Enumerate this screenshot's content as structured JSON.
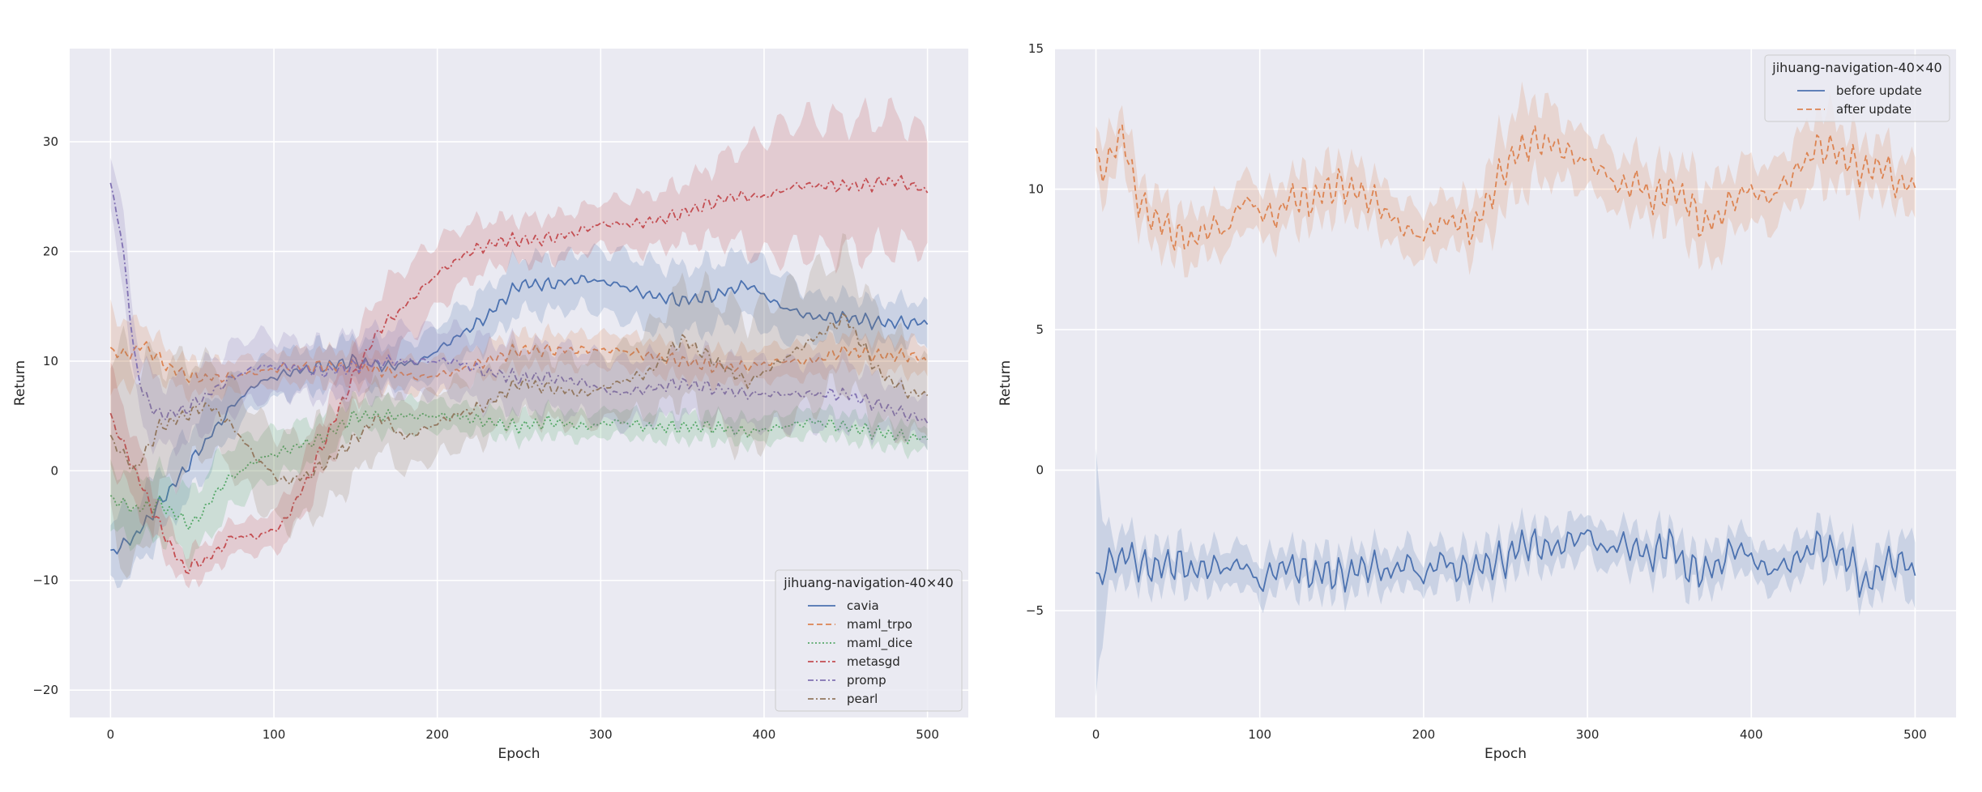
{
  "chart_data": [
    {
      "type": "line",
      "xlabel": "Epoch",
      "ylabel": "Return",
      "xlim": [
        -25,
        525
      ],
      "ylim": [
        -22.5,
        38.5
      ],
      "xticks": [
        0,
        100,
        200,
        300,
        400,
        500
      ],
      "yticks": [
        -20,
        -10,
        0,
        10,
        20,
        30
      ],
      "grid": true,
      "legend": {
        "title": "jihuang-navigation-40×40",
        "placement": "lower-right"
      },
      "series": [
        {
          "name": "cavia",
          "color": "#4c72b0",
          "dash": "solid",
          "x": [
            0,
            15,
            30,
            45,
            60,
            75,
            90,
            110,
            130,
            150,
            170,
            190,
            210,
            230,
            250,
            270,
            290,
            310,
            330,
            350,
            370,
            390,
            410,
            430,
            450,
            470,
            490,
            500
          ],
          "y": [
            -7.5,
            -6,
            -3,
            0,
            3,
            6,
            8,
            9,
            9.5,
            10,
            9.5,
            10,
            12,
            14,
            17,
            17,
            17.5,
            17,
            16,
            15.5,
            16,
            17,
            15,
            14,
            14,
            13.5,
            13.5,
            13.5
          ],
          "band": [
            3,
            3,
            3,
            3,
            3,
            2.5,
            2,
            2,
            2,
            2,
            2,
            2,
            2.5,
            2.5,
            2.5,
            2.5,
            2.5,
            3,
            3,
            3,
            3,
            3,
            3,
            2,
            2,
            2,
            2,
            1.8
          ]
        },
        {
          "name": "maml_trpo",
          "color": "#dd8452",
          "dash": "dashed",
          "x": [
            0,
            10,
            20,
            35,
            50,
            70,
            90,
            110,
            130,
            150,
            170,
            190,
            210,
            230,
            250,
            270,
            290,
            310,
            330,
            350,
            370,
            390,
            410,
            430,
            450,
            470,
            490,
            500
          ],
          "y": [
            11,
            10.5,
            11.5,
            9.5,
            8.5,
            8.5,
            9,
            9.5,
            9.5,
            9.5,
            9,
            8.5,
            9,
            10,
            11,
            11,
            11,
            11,
            10.5,
            10,
            9.5,
            9.5,
            10,
            10,
            11,
            10.5,
            10.5,
            10
          ],
          "band": [
            4,
            3,
            2,
            1.5,
            1.5,
            1.5,
            1.5,
            1.5,
            1.5,
            1.5,
            1.5,
            1.5,
            1.5,
            1.5,
            1.5,
            1.5,
            1.5,
            1.5,
            1.5,
            1.5,
            1.5,
            1.5,
            1.5,
            1.5,
            1.5,
            1.5,
            1.5,
            1.5
          ]
        },
        {
          "name": "maml_dice",
          "color": "#55a868",
          "dash": "dotted",
          "x": [
            0,
            15,
            30,
            50,
            70,
            90,
            110,
            130,
            150,
            170,
            190,
            210,
            230,
            250,
            270,
            290,
            310,
            330,
            350,
            370,
            390,
            410,
            430,
            450,
            470,
            490,
            500
          ],
          "y": [
            -2.5,
            -3.5,
            -3,
            -5,
            -1,
            1,
            2,
            3,
            5,
            5,
            5,
            5,
            4.5,
            4,
            4.5,
            4,
            4.5,
            4,
            4,
            4,
            3.5,
            4,
            4.5,
            4,
            3.5,
            3,
            3
          ],
          "band": [
            3,
            3,
            3,
            3,
            3,
            2.5,
            2,
            2,
            1.5,
            1.5,
            1.5,
            1.2,
            1.2,
            1.2,
            1.2,
            1.2,
            1.2,
            1.2,
            1.2,
            1.2,
            1.2,
            1.2,
            1.2,
            1.2,
            1.2,
            1.2,
            1.2
          ]
        },
        {
          "name": "metasgd",
          "color": "#c44e52",
          "dash": "dashdot",
          "x": [
            0,
            15,
            30,
            45,
            60,
            75,
            90,
            105,
            120,
            135,
            150,
            165,
            180,
            200,
            220,
            240,
            260,
            280,
            300,
            320,
            340,
            360,
            380,
            400,
            420,
            440,
            460,
            480,
            500
          ],
          "y": [
            5,
            0,
            -5,
            -9,
            -8,
            -6,
            -6,
            -5,
            -1,
            4,
            9,
            13,
            15,
            18,
            20,
            21,
            21,
            21.5,
            22.5,
            22.5,
            23,
            24,
            25,
            25,
            26,
            26,
            26,
            26.5,
            25.5
          ],
          "band": [
            4,
            3,
            2,
            1.5,
            1.5,
            1.5,
            1.5,
            2,
            2.5,
            3,
            3,
            3.5,
            3.5,
            3,
            2.5,
            2,
            2,
            2,
            2,
            2.5,
            2.5,
            3,
            4,
            5.5,
            6,
            6,
            6,
            6,
            5
          ]
        },
        {
          "name": "promp",
          "color": "#8172b3",
          "dash": "dashdot",
          "x": [
            0,
            5,
            10,
            15,
            20,
            30,
            45,
            60,
            75,
            90,
            110,
            130,
            150,
            170,
            190,
            210,
            230,
            250,
            270,
            290,
            310,
            330,
            350,
            370,
            390,
            410,
            430,
            450,
            470,
            490,
            500
          ],
          "y": [
            26,
            23,
            17,
            10,
            7,
            5,
            5.5,
            7,
            8.5,
            9.5,
            9.5,
            9,
            9.5,
            10,
            10,
            10,
            9,
            8.5,
            8.5,
            8,
            7,
            7.5,
            8,
            7.5,
            7,
            7,
            7,
            7,
            6,
            5,
            4.5
          ],
          "band": [
            3,
            3,
            3,
            3,
            3,
            3,
            3,
            3,
            3,
            3,
            2.5,
            2.5,
            3,
            3,
            3,
            3,
            3,
            3,
            3,
            3,
            3,
            3,
            3,
            3,
            3,
            3,
            3,
            3,
            2.5,
            2,
            2
          ]
        },
        {
          "name": "pearl",
          "color": "#937860",
          "dash": "dashdot",
          "x": [
            0,
            15,
            30,
            45,
            60,
            75,
            90,
            105,
            120,
            135,
            150,
            165,
            180,
            195,
            210,
            230,
            250,
            270,
            290,
            310,
            330,
            350,
            370,
            390,
            410,
            430,
            450,
            470,
            490,
            500
          ],
          "y": [
            3,
            0,
            4,
            5,
            6,
            4,
            1,
            -1,
            -0.5,
            1,
            3,
            5,
            3,
            4,
            5,
            6,
            8,
            7.5,
            7,
            8,
            9,
            12,
            10,
            8,
            10,
            12,
            14,
            9,
            7,
            7
          ],
          "band": [
            8,
            10,
            6,
            5,
            4,
            4,
            4,
            4,
            4,
            4,
            3.5,
            3,
            3,
            3,
            3,
            3,
            3,
            3,
            3,
            3,
            4,
            5,
            6,
            6,
            6,
            6,
            6,
            5,
            4,
            3
          ]
        }
      ]
    },
    {
      "type": "line",
      "xlabel": "Epoch",
      "ylabel": "Return",
      "xlim": [
        -25,
        525
      ],
      "ylim": [
        -8.8,
        15
      ],
      "xticks": [
        0,
        100,
        200,
        300,
        400,
        500
      ],
      "yticks": [
        -5,
        0,
        5,
        10,
        15
      ],
      "grid": true,
      "legend": {
        "title": "jihuang-navigation-40×40",
        "placement": "upper-right"
      },
      "series": [
        {
          "name": "before update",
          "color": "#4c72b0",
          "dash": "solid",
          "x": [
            0,
            2,
            5,
            10,
            20,
            30,
            40,
            50,
            60,
            70,
            80,
            90,
            100,
            110,
            120,
            130,
            140,
            150,
            160,
            170,
            180,
            190,
            200,
            210,
            220,
            230,
            240,
            250,
            260,
            270,
            280,
            290,
            300,
            310,
            320,
            330,
            340,
            350,
            360,
            370,
            380,
            390,
            400,
            410,
            420,
            430,
            440,
            450,
            460,
            470,
            480,
            490,
            500
          ],
          "y": [
            -3.9,
            -3.8,
            -3.5,
            -3.2,
            -3.0,
            -3.5,
            -3.4,
            -3.3,
            -3.6,
            -3.4,
            -3.5,
            -3.3,
            -4.1,
            -3.5,
            -3.4,
            -3.7,
            -3.6,
            -3.8,
            -3.5,
            -3.4,
            -3.7,
            -3.2,
            -3.9,
            -3.1,
            -3.6,
            -3.5,
            -3.3,
            -3.2,
            -2.6,
            -2.7,
            -2.8,
            -2.5,
            -2.2,
            -2.9,
            -2.6,
            -2.8,
            -3.1,
            -2.5,
            -3.5,
            -3.6,
            -3.4,
            -2.7,
            -3.1,
            -3.6,
            -3.4,
            -3.1,
            -2.6,
            -2.9,
            -3.2,
            -4.2,
            -3.4,
            -3.2,
            -3.6
          ],
          "band": [
            4.0,
            2.5,
            1.5,
            1.0,
            0.8,
            0.7,
            0.7,
            0.7,
            0.7,
            0.7,
            0.7,
            0.7,
            0.7,
            0.7,
            0.7,
            0.7,
            0.7,
            0.7,
            0.7,
            0.7,
            0.7,
            0.7,
            0.7,
            0.7,
            0.7,
            0.7,
            0.7,
            0.7,
            0.7,
            0.7,
            0.7,
            0.7,
            0.7,
            0.7,
            0.7,
            0.7,
            0.7,
            0.7,
            0.7,
            0.7,
            0.7,
            0.7,
            0.7,
            0.7,
            0.7,
            0.7,
            0.7,
            0.7,
            0.7,
            0.7,
            0.7,
            0.7,
            1.2
          ]
        },
        {
          "name": "after update",
          "color": "#dd8452",
          "dash": "dashed",
          "x": [
            0,
            5,
            10,
            15,
            20,
            25,
            30,
            40,
            50,
            60,
            70,
            80,
            90,
            100,
            110,
            120,
            130,
            140,
            150,
            160,
            170,
            180,
            190,
            200,
            210,
            220,
            230,
            240,
            250,
            260,
            270,
            280,
            290,
            300,
            310,
            320,
            330,
            340,
            350,
            360,
            370,
            380,
            390,
            400,
            410,
            420,
            430,
            440,
            450,
            460,
            470,
            480,
            490,
            500
          ],
          "y": [
            11.2,
            10.6,
            11.2,
            12.2,
            11.0,
            9.8,
            9.2,
            8.8,
            8.3,
            8.2,
            8.7,
            8.5,
            9.7,
            9.2,
            9.0,
            9.8,
            9.5,
            10.0,
            10.1,
            9.9,
            9.6,
            9.0,
            8.5,
            8.3,
            8.8,
            8.9,
            8.5,
            9.7,
            10.8,
            11.5,
            11.7,
            11.6,
            11.2,
            11.0,
            10.6,
            10.0,
            10.3,
            9.6,
            10.0,
            9.7,
            8.7,
            9.0,
            9.7,
            10.0,
            9.6,
            10.2,
            10.8,
            11.5,
            11.4,
            11.0,
            10.6,
            10.9,
            10.1,
            10.2
          ],
          "band": [
            0.9,
            0.9,
            0.9,
            0.9,
            0.9,
            0.9,
            0.9,
            0.9,
            0.9,
            0.9,
            0.9,
            0.9,
            0.9,
            0.9,
            0.9,
            0.9,
            0.9,
            0.9,
            0.9,
            0.9,
            0.9,
            0.9,
            0.9,
            0.9,
            0.9,
            0.9,
            0.9,
            1.2,
            1.5,
            1.5,
            1.5,
            1.2,
            1.0,
            1.0,
            1.0,
            1.0,
            1.0,
            1.0,
            1.0,
            1.2,
            1.4,
            1.3,
            1.1,
            1.1,
            1.1,
            1.1,
            1.1,
            1.3,
            1.2,
            1.0,
            1.0,
            0.9,
            0.9,
            0.9
          ]
        }
      ]
    }
  ]
}
